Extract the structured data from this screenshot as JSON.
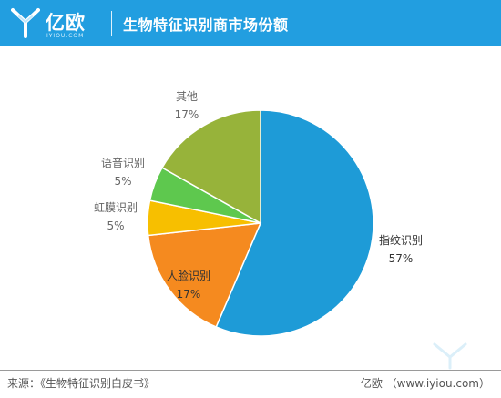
{
  "header": {
    "logo_name": "亿欧",
    "logo_sub": "IYIOU.COM",
    "title": "生物特征识别商市场份额"
  },
  "chart_data": {
    "type": "pie",
    "title": "生物特征识别商市场份额",
    "slices": [
      {
        "label": "指纹识别",
        "value": 57,
        "display": "57%",
        "color": "#1e9bd7"
      },
      {
        "label": "人脸识别",
        "value": 17,
        "display": "17%",
        "color": "#f58a1f"
      },
      {
        "label": "虹膜识别",
        "value": 5,
        "display": "5%",
        "color": "#f7bf00"
      },
      {
        "label": "语音识别",
        "value": 5,
        "display": "5%",
        "color": "#5ec84e"
      },
      {
        "label": "其他",
        "value": 17,
        "display": "17%",
        "color": "#97b33a"
      }
    ],
    "start_angle_deg": 0,
    "direction": "clockwise"
  },
  "footer": {
    "source": "来源：《生物特征识别白皮书》",
    "brand": "亿欧 （www.iyiou.com）"
  }
}
